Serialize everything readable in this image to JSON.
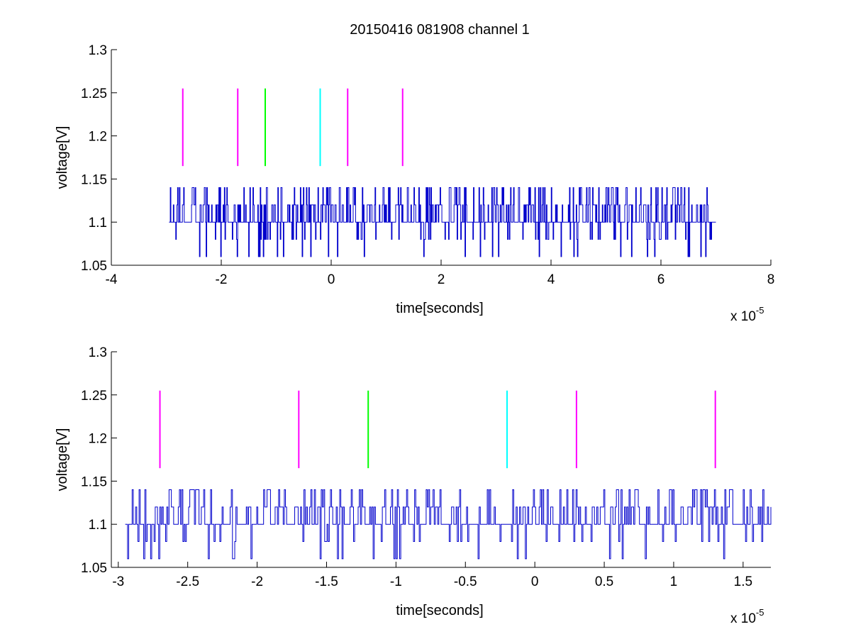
{
  "figure": {
    "background": "#ffffff"
  },
  "chart_data": [
    {
      "type": "line",
      "title": "20150416 081908 channel 1",
      "xlabel": "time[seconds]",
      "ylabel": "voltage[V]",
      "x_multiplier_label": {
        "base": "x 10",
        "exponent": "-5"
      },
      "xlim": [
        -4,
        8
      ],
      "ylim": [
        1.05,
        1.3
      ],
      "xticks": [
        -4,
        -2,
        0,
        2,
        4,
        6,
        8
      ],
      "xtick_labels": [
        "-4",
        "-2",
        "0",
        "2",
        "4",
        "6",
        "8"
      ],
      "yticks": [
        1.05,
        1.1,
        1.15,
        1.2,
        1.25,
        1.3
      ],
      "ytick_labels": [
        "1.05",
        "1.1",
        "1.15",
        "1.2",
        "1.25",
        "1.3"
      ],
      "grid": false,
      "series": [
        {
          "color": "#0000cc",
          "style": "step",
          "x_range": [
            -2.95,
            7.0
          ],
          "levels": [
            1.06,
            1.08,
            1.1,
            1.12,
            1.14
          ],
          "baseline": 1.1
        }
      ],
      "markers": [
        {
          "x": -2.7,
          "y0": 1.165,
          "y1": 1.255,
          "color": "#ff00ff"
        },
        {
          "x": -1.7,
          "y0": 1.165,
          "y1": 1.255,
          "color": "#ff00ff"
        },
        {
          "x": -1.2,
          "y0": 1.165,
          "y1": 1.255,
          "color": "#00ff00"
        },
        {
          "x": -0.2,
          "y0": 1.165,
          "y1": 1.255,
          "color": "#00ffff"
        },
        {
          "x": 0.3,
          "y0": 1.165,
          "y1": 1.255,
          "color": "#ff00ff"
        },
        {
          "x": 1.3,
          "y0": 1.165,
          "y1": 1.255,
          "color": "#ff00ff"
        }
      ]
    },
    {
      "type": "line",
      "title": "",
      "xlabel": "time[seconds]",
      "ylabel": "voltage[V]",
      "x_multiplier_label": {
        "base": "x 10",
        "exponent": "-5"
      },
      "xlim": [
        -3.05,
        1.7
      ],
      "ylim": [
        1.05,
        1.3
      ],
      "xticks": [
        -3,
        -2.5,
        -2,
        -1.5,
        -1,
        -0.5,
        0,
        0.5,
        1,
        1.5
      ],
      "xtick_labels": [
        "-3",
        "-2.5",
        "-2",
        "-1.5",
        "-1",
        "-0.5",
        "0",
        "0.5",
        "1",
        "1.5"
      ],
      "yticks": [
        1.05,
        1.1,
        1.15,
        1.2,
        1.25,
        1.3
      ],
      "ytick_labels": [
        "1.05",
        "1.1",
        "1.15",
        "1.2",
        "1.25",
        "1.3"
      ],
      "grid": false,
      "series": [
        {
          "color": "#0000cc",
          "style": "step",
          "x_range": [
            -2.95,
            1.7
          ],
          "levels": [
            1.06,
            1.08,
            1.1,
            1.12,
            1.14
          ],
          "baseline": 1.1
        }
      ],
      "markers": [
        {
          "x": -2.7,
          "y0": 1.165,
          "y1": 1.255,
          "color": "#ff00ff"
        },
        {
          "x": -1.7,
          "y0": 1.165,
          "y1": 1.255,
          "color": "#ff00ff"
        },
        {
          "x": -1.2,
          "y0": 1.165,
          "y1": 1.255,
          "color": "#00ff00"
        },
        {
          "x": -0.2,
          "y0": 1.165,
          "y1": 1.255,
          "color": "#00ffff"
        },
        {
          "x": 0.3,
          "y0": 1.165,
          "y1": 1.255,
          "color": "#ff00ff"
        },
        {
          "x": 1.3,
          "y0": 1.165,
          "y1": 1.255,
          "color": "#ff00ff"
        }
      ]
    }
  ]
}
